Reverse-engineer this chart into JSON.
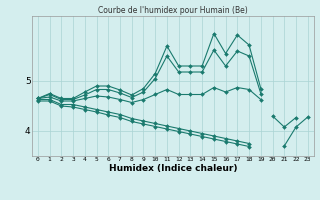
{
  "xlabel": "Humidex (Indice chaleur)",
  "bg_color": "#d4eeee",
  "line_color": "#1a7a6e",
  "grid_color": "#aad4d4",
  "x_values": [
    0,
    1,
    2,
    3,
    4,
    5,
    6,
    7,
    8,
    9,
    10,
    11,
    12,
    13,
    14,
    15,
    16,
    17,
    18,
    19,
    20,
    21,
    22,
    23
  ],
  "line1": [
    4.65,
    4.75,
    4.65,
    4.65,
    4.78,
    4.9,
    4.9,
    4.82,
    4.72,
    4.85,
    5.15,
    5.7,
    5.3,
    5.3,
    5.3,
    5.95,
    5.55,
    5.92,
    5.72,
    4.85,
    null,
    null,
    null,
    null
  ],
  "line2": [
    4.65,
    4.73,
    4.63,
    4.63,
    4.72,
    4.83,
    4.83,
    4.76,
    4.67,
    4.78,
    5.05,
    5.5,
    5.18,
    5.18,
    5.18,
    5.62,
    5.3,
    5.6,
    5.5,
    4.75,
    null,
    null,
    null,
    null
  ],
  "line3": [
    4.65,
    4.68,
    4.6,
    4.6,
    4.65,
    4.7,
    4.68,
    4.63,
    4.57,
    4.63,
    4.73,
    4.83,
    4.73,
    4.73,
    4.73,
    4.87,
    4.78,
    4.87,
    4.83,
    4.63,
    null,
    null,
    null,
    null
  ],
  "line4": [
    4.63,
    4.63,
    4.53,
    4.53,
    4.48,
    4.43,
    4.38,
    4.33,
    4.25,
    4.2,
    4.15,
    4.1,
    4.05,
    4.0,
    3.95,
    3.9,
    3.85,
    3.8,
    3.75,
    null,
    4.3,
    4.08,
    4.27,
    null
  ],
  "line5": [
    4.6,
    4.6,
    4.5,
    4.48,
    4.43,
    4.38,
    4.32,
    4.27,
    4.19,
    4.14,
    4.09,
    4.04,
    3.99,
    3.94,
    3.89,
    3.84,
    3.79,
    3.74,
    3.69,
    null,
    null,
    3.7,
    4.08,
    4.28
  ],
  "ylim": [
    3.5,
    6.3
  ],
  "yticks": [
    4,
    5
  ],
  "xticks": [
    0,
    1,
    2,
    3,
    4,
    5,
    6,
    7,
    8,
    9,
    10,
    11,
    12,
    13,
    14,
    15,
    16,
    17,
    18,
    19,
    20,
    21,
    22,
    23
  ],
  "markersize": 2.0,
  "linewidth": 0.8
}
